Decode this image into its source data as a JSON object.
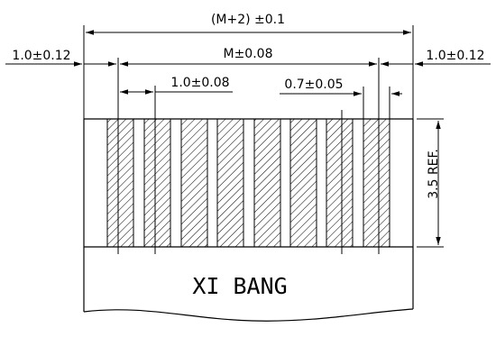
{
  "dimensions": {
    "overall": "(M+2) ±0.1",
    "left_margin": "1.0±0.12",
    "right_margin": "1.0±0.12",
    "contact_span": "M±0.08",
    "pitch": "1.0±0.08",
    "contact_width": "0.7±0.05",
    "height": "3.5 REF."
  },
  "label": {
    "text": "XI BANG"
  }
}
